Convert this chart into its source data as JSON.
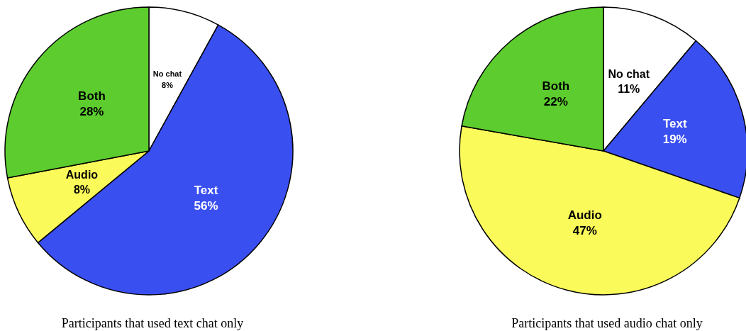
{
  "chart_data": [
    {
      "type": "pie",
      "title": "Participants that used text chat only",
      "categories": [
        "No chat",
        "Text",
        "Audio",
        "Both"
      ],
      "values": [
        8,
        56,
        8,
        28
      ],
      "value_labels": [
        "8%",
        "56%",
        "8%",
        "28%"
      ],
      "colors": [
        "#ffffff",
        "#3a4ff0",
        "#fafa5a",
        "#5ccc2e"
      ],
      "legend": false
    },
    {
      "type": "pie",
      "title": "Participants that used audio chat only",
      "categories": [
        "No chat",
        "Text",
        "Audio",
        "Both"
      ],
      "values": [
        11,
        19,
        47,
        22
      ],
      "value_labels": [
        "11%",
        "19%",
        "47%",
        "22%"
      ],
      "colors": [
        "#ffffff",
        "#3a4ff0",
        "#fafa5a",
        "#5ccc2e"
      ],
      "legend": false
    }
  ]
}
